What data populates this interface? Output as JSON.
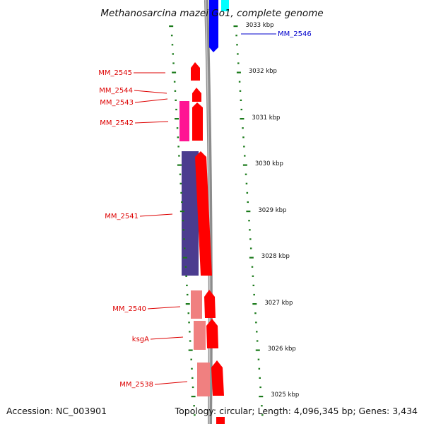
{
  "title": "Methanosarcina mazei Go1, complete genome",
  "footer": {
    "accession": "Accession: NC_003901",
    "stats": "Topology: circular; Length: 4,096,345 bp; Genes: 3,434"
  },
  "colors": {
    "red_gene": "#ff0000",
    "pink_gene": "#f08080",
    "magenta_gene": "#ff1493",
    "purple_gene": "#4b3c8f",
    "blue_gene": "#0000ff",
    "cyan_gene": "#00ffff",
    "backbone": "#8c8c8c",
    "ruler_dots": "#1a7a1a",
    "label_red": "#dd0000",
    "label_blue": "#0000cc"
  },
  "scale_ticks": [
    "3033 kbp",
    "3032 kbp",
    "3031 kbp",
    "3030 kbp",
    "3029 kbp",
    "3028 kbp",
    "3027 kbp",
    "3026 kbp",
    "3025 kbp"
  ],
  "genes": [
    {
      "name": "MM_2546",
      "color": "blue"
    },
    {
      "name": "MM_2545",
      "color": "red"
    },
    {
      "name": "MM_2544",
      "color": "red"
    },
    {
      "name": "MM_2543",
      "color": "red"
    },
    {
      "name": "MM_2542",
      "color": "red"
    },
    {
      "name": "MM_2541",
      "color": "red"
    },
    {
      "name": "MM_2540",
      "color": "red"
    },
    {
      "name": "ksgA",
      "color": "red"
    },
    {
      "name": "MM_2538",
      "color": "red"
    }
  ]
}
